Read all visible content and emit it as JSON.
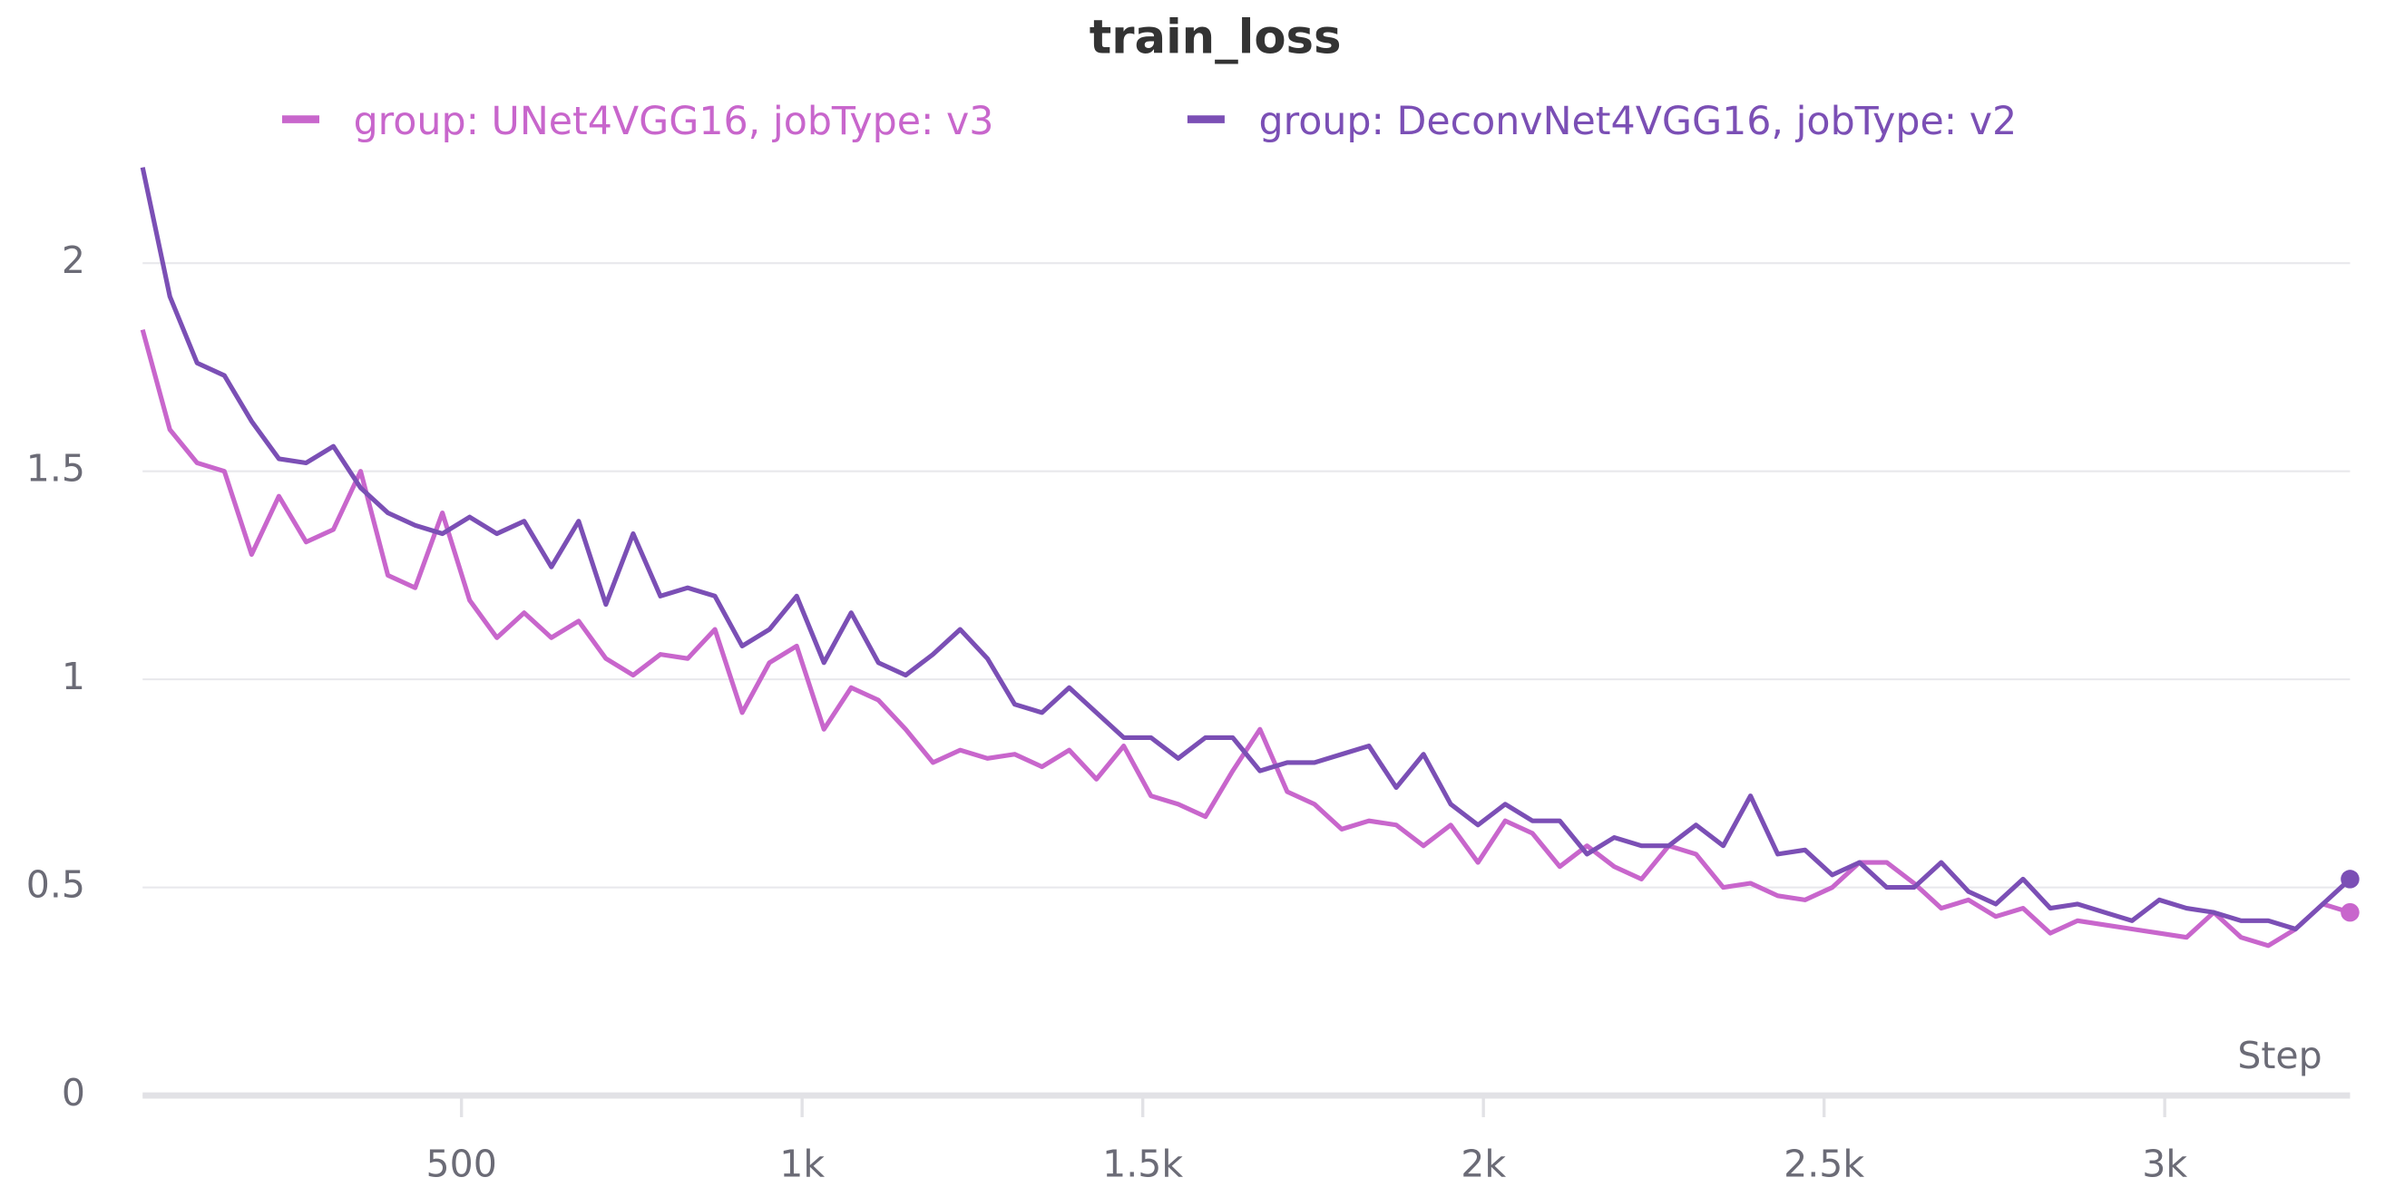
{
  "chart_data": {
    "type": "line",
    "title": "train_loss",
    "x_label": "Step",
    "x": [
      32,
      72,
      112,
      152,
      192,
      232,
      272,
      312,
      352,
      392,
      432,
      472,
      512,
      552,
      592,
      632,
      672,
      712,
      752,
      792,
      832,
      872,
      912,
      952,
      992,
      1032,
      1072,
      1112,
      1152,
      1192,
      1232,
      1272,
      1312,
      1352,
      1392,
      1432,
      1472,
      1512,
      1552,
      1592,
      1632,
      1672,
      1712,
      1752,
      1792,
      1832,
      1872,
      1912,
      1952,
      1992,
      2032,
      2072,
      2112,
      2152,
      2192,
      2232,
      2272,
      2312,
      2352,
      2392,
      2432,
      2472,
      2512,
      2552,
      2592,
      2632,
      2672,
      2712,
      2752,
      2792,
      2832,
      2872,
      2912,
      2952,
      2992,
      3032,
      3072,
      3112,
      3152,
      3192,
      3232,
      3272
    ],
    "series": [
      {
        "name": "group: UNet4VGG16, jobType: v3",
        "color": "#c866cc",
        "values": [
          1.84,
          1.6,
          1.52,
          1.5,
          1.3,
          1.44,
          1.33,
          1.36,
          1.5,
          1.25,
          1.22,
          1.4,
          1.19,
          1.1,
          1.16,
          1.1,
          1.14,
          1.05,
          1.01,
          1.06,
          1.05,
          1.12,
          0.92,
          1.04,
          1.08,
          0.88,
          0.98,
          0.95,
          0.88,
          0.8,
          0.83,
          0.81,
          0.82,
          0.79,
          0.83,
          0.76,
          0.84,
          0.72,
          0.7,
          0.67,
          0.78,
          0.88,
          0.73,
          0.7,
          0.64,
          0.66,
          0.65,
          0.6,
          0.65,
          0.56,
          0.66,
          0.63,
          0.55,
          0.6,
          0.55,
          0.52,
          0.6,
          0.58,
          0.5,
          0.51,
          0.48,
          0.47,
          0.5,
          0.56,
          0.56,
          0.51,
          0.45,
          0.47,
          0.43,
          0.45,
          0.39,
          0.42,
          0.41,
          0.4,
          0.39,
          0.38,
          0.44,
          0.38,
          0.36,
          0.4,
          0.46,
          0.44
        ]
      },
      {
        "name": "group: DeconvNet4VGG16, jobType: v2",
        "color": "#7b4fb5",
        "values": [
          2.23,
          1.92,
          1.76,
          1.73,
          1.62,
          1.53,
          1.52,
          1.56,
          1.46,
          1.4,
          1.37,
          1.35,
          1.39,
          1.35,
          1.38,
          1.27,
          1.38,
          1.18,
          1.35,
          1.2,
          1.22,
          1.2,
          1.08,
          1.12,
          1.2,
          1.04,
          1.16,
          1.04,
          1.01,
          1.06,
          1.12,
          1.05,
          0.94,
          0.92,
          0.98,
          0.92,
          0.86,
          0.86,
          0.81,
          0.86,
          0.86,
          0.78,
          0.8,
          0.8,
          0.82,
          0.84,
          0.74,
          0.82,
          0.7,
          0.65,
          0.7,
          0.66,
          0.66,
          0.58,
          0.62,
          0.6,
          0.6,
          0.65,
          0.6,
          0.72,
          0.58,
          0.59,
          0.53,
          0.56,
          0.5,
          0.5,
          0.56,
          0.49,
          0.46,
          0.52,
          0.45,
          0.46,
          0.44,
          0.42,
          0.47,
          0.45,
          0.44,
          0.42,
          0.42,
          0.4,
          0.46,
          0.52
        ]
      }
    ],
    "xlim": [
      32,
      3272
    ],
    "ylim": [
      0,
      2.26
    ],
    "xticks": [
      500,
      {
        "value": 1000,
        "label": "1k"
      },
      {
        "value": 1500,
        "label": "1.5k"
      },
      {
        "value": 2000,
        "label": "2k"
      },
      {
        "value": 2500,
        "label": "2.5k"
      },
      {
        "value": 3000,
        "label": "3k"
      }
    ],
    "yticks": [
      0,
      0.5,
      1,
      1.5,
      2
    ],
    "grid": true
  }
}
